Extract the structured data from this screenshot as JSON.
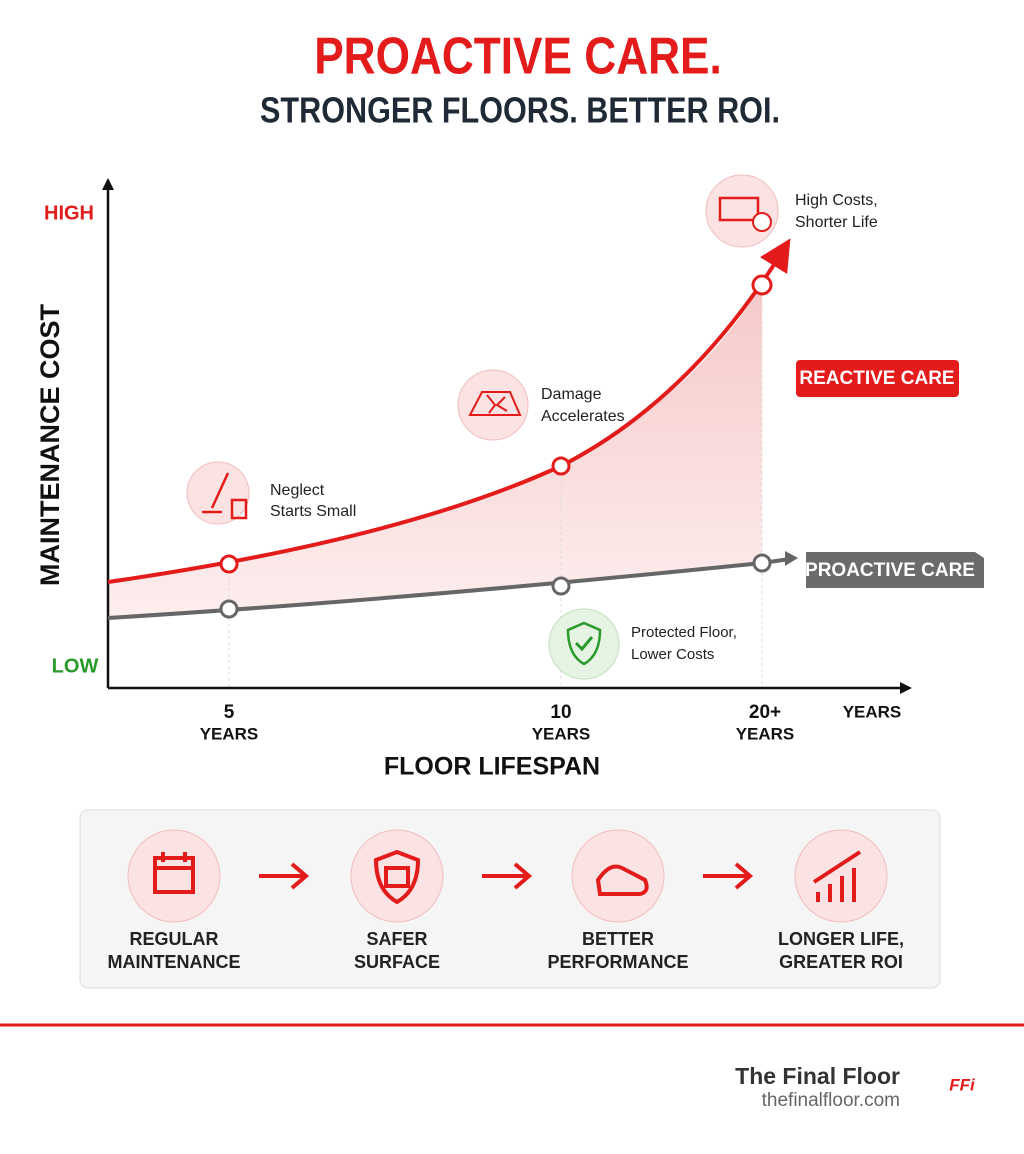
{
  "header": {
    "title": "PROACTIVE CARE.",
    "subtitle": "STRONGER FLOORS. BETTER ROI."
  },
  "graph": {
    "y_axis_label": "MAINTENANCE COST",
    "y_high": "HIGH",
    "y_low": "LOW",
    "x_axis_label": "FLOOR LIFESPAN",
    "x_end": "YEARS",
    "x_labels": [
      [
        "5",
        "YEARS"
      ],
      [
        "10",
        "YEARS"
      ],
      [
        "20+",
        "YEARS"
      ]
    ],
    "reactive_label": "REACTIVE CARE",
    "proactive_label": "PROACTIVE CARE",
    "annotations": [
      [
        "Neglect",
        "Starts Small"
      ],
      [
        "Damage",
        "Accelerates"
      ],
      [
        "High Costs,",
        "Shorter Life"
      ],
      [
        "Protected Floor,",
        "Lower Costs"
      ]
    ]
  },
  "steps": [
    [
      "REGULAR",
      "MAINTENANCE"
    ],
    [
      "SAFER",
      "SURFACE"
    ],
    [
      "BETTER",
      "PERFORMANCE"
    ],
    [
      "LONGER LIFE,",
      "GREATER ROI"
    ]
  ],
  "footer": {
    "brand": "The Final Floor",
    "url": "thefinalfloor.com",
    "logo": "FFi"
  }
}
